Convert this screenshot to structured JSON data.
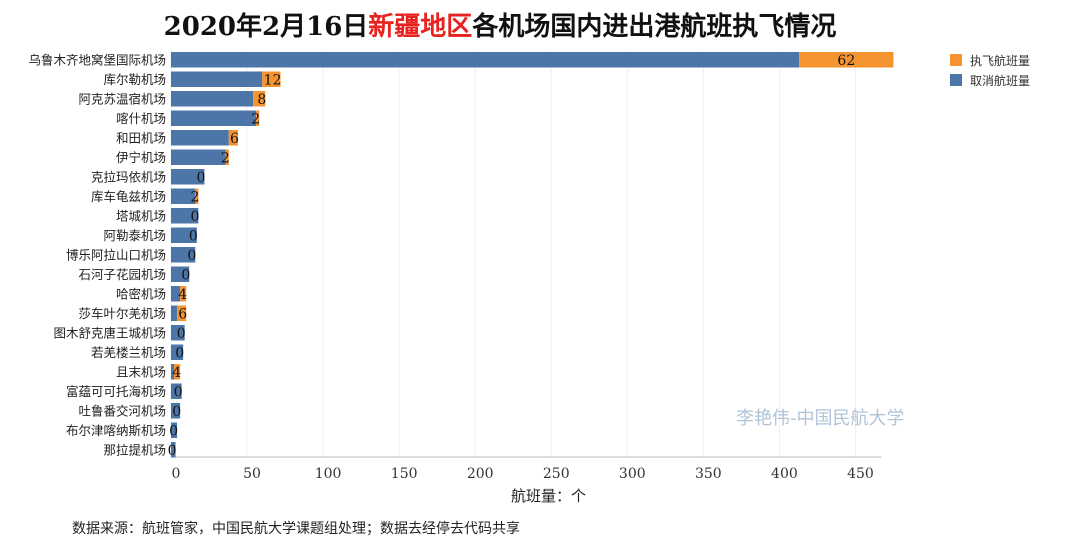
{
  "title": {
    "prefix": "2020年2月16日",
    "highlight": "新疆地区",
    "suffix": "各机场国内进出港航班执飞情况"
  },
  "legend": {
    "flown_label": "执飞航班量",
    "cancelled_label": "取消航班量"
  },
  "colors": {
    "flown": "#f59331",
    "cancelled": "#4d76a8",
    "title_highlight": "#e8231f",
    "watermark": "#b0c4d8"
  },
  "watermark": "李艳伟-中国民航大学",
  "source_note": "数据来源：航班管家，中国民航大学课题组处理；数据去经停去代码共享",
  "chart_data": {
    "type": "bar",
    "orientation": "horizontal",
    "stacked": true,
    "xlabel": "航班量：个",
    "xlim": [
      0,
      500
    ],
    "xticks": [
      0,
      50,
      100,
      150,
      200,
      250,
      300,
      350,
      400,
      450
    ],
    "grid": true,
    "legend_position": "top-right",
    "categories": [
      "乌鲁木齐地窝堡国际机场",
      "库尔勒机场",
      "阿克苏温宿机场",
      "喀什机场",
      "和田机场",
      "伊宁机场",
      "克拉玛依机场",
      "库车龟兹机场",
      "塔城机场",
      "阿勒泰机场",
      "博乐阿拉山口机场",
      "石河子花园机场",
      "哈密机场",
      "莎车叶尔羌机场",
      "图木舒克唐王城机场",
      "若羌楼兰机场",
      "且末机场",
      "富蕴可可托海机场",
      "吐鲁番交河机场",
      "布尔津喀纳斯机场",
      "那拉提机场"
    ],
    "series": [
      {
        "name": "取消航班量",
        "values": [
          413,
          60,
          54,
          56,
          38,
          36,
          22,
          16,
          18,
          17,
          16,
          12,
          6,
          4,
          9,
          8,
          2,
          7,
          6,
          4,
          3
        ]
      },
      {
        "name": "执飞航班量",
        "values": [
          62,
          12,
          8,
          2,
          6,
          2,
          0,
          2,
          0,
          0,
          0,
          0,
          4,
          6,
          0,
          0,
          4,
          0,
          0,
          0,
          0
        ]
      }
    ]
  }
}
